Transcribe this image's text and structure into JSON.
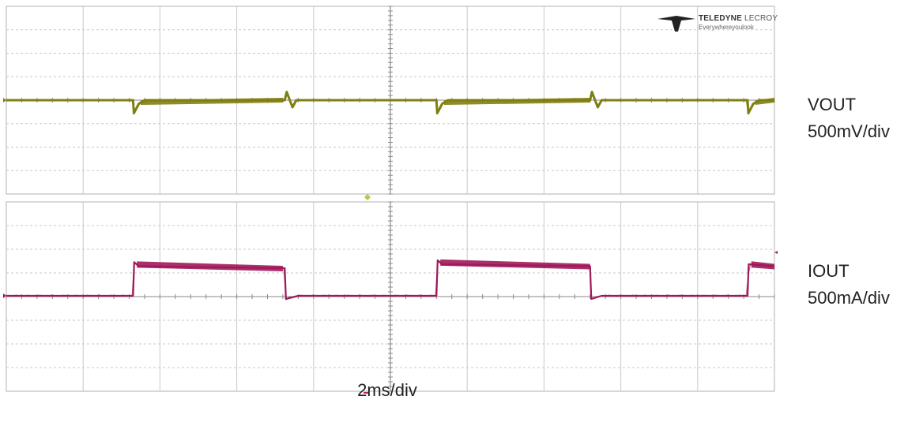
{
  "logo": {
    "brand_bold": "TELEDYNE",
    "brand_light": "LECROY",
    "tagline": "Everywhereyoulook"
  },
  "labels": {
    "vout_name": "VOUT",
    "vout_scale": "500mV/div",
    "iout_name": "IOUT",
    "iout_scale": "500mA/div",
    "timebase": "2ms/div"
  },
  "colors": {
    "vout": "#7f7f12",
    "iout": "#a0195a",
    "grid": "#c8c8c8",
    "center_axis": "#8a8a8a",
    "frame": "#b0b0b0"
  },
  "chart_data": [
    {
      "type": "line",
      "channel": "VOUT",
      "scale": "500mV/div",
      "time_per_div_ms": 2,
      "x_divisions": 10,
      "y_divisions": 8,
      "grid": true,
      "x_unit": "ms",
      "y_unit": "div",
      "series": [
        {
          "points": [
            [
              0,
              0
            ],
            [
              3.3,
              0
            ],
            [
              3.32,
              -0.55
            ],
            [
              3.45,
              -0.15
            ],
            [
              3.6,
              0
            ],
            [
              7.25,
              0
            ],
            [
              7.3,
              0.35
            ],
            [
              7.38,
              0.0
            ],
            [
              7.45,
              -0.3
            ],
            [
              7.55,
              0
            ],
            [
              11.2,
              0
            ],
            [
              11.22,
              -0.55
            ],
            [
              11.35,
              -0.15
            ],
            [
              11.5,
              0
            ],
            [
              15.2,
              0
            ],
            [
              15.25,
              0.35
            ],
            [
              15.33,
              0.0
            ],
            [
              15.4,
              -0.3
            ],
            [
              15.5,
              0
            ],
            [
              19.3,
              0
            ],
            [
              19.32,
              -0.55
            ],
            [
              19.45,
              -0.15
            ],
            [
              19.6,
              0
            ],
            [
              20,
              0
            ]
          ],
          "ripple_intervals_ms": [
            [
              3.5,
              7.2
            ],
            [
              11.4,
              15.2
            ],
            [
              19.5,
              20
            ]
          ]
        }
      ]
    },
    {
      "type": "line",
      "channel": "IOUT",
      "scale": "500mA/div",
      "time_per_div_ms": 2,
      "x_divisions": 10,
      "y_divisions": 8,
      "grid": true,
      "x_unit": "ms",
      "y_unit": "div",
      "series": [
        {
          "points": [
            [
              0,
              0
            ],
            [
              3.3,
              0
            ],
            [
              3.33,
              0.85
            ],
            [
              3.45,
              0.75
            ],
            [
              7.25,
              0.7
            ],
            [
              7.28,
              -0.08
            ],
            [
              7.6,
              0
            ],
            [
              11.2,
              0
            ],
            [
              11.23,
              0.9
            ],
            [
              11.35,
              0.8
            ],
            [
              15.2,
              0.75
            ],
            [
              15.23,
              -0.08
            ],
            [
              15.5,
              0
            ],
            [
              19.3,
              0
            ],
            [
              19.33,
              0.8
            ],
            [
              20,
              0.75
            ]
          ],
          "ripple_intervals_ms": [
            [
              3.4,
              7.2
            ],
            [
              11.3,
              15.2
            ],
            [
              19.4,
              20
            ]
          ]
        }
      ]
    }
  ]
}
